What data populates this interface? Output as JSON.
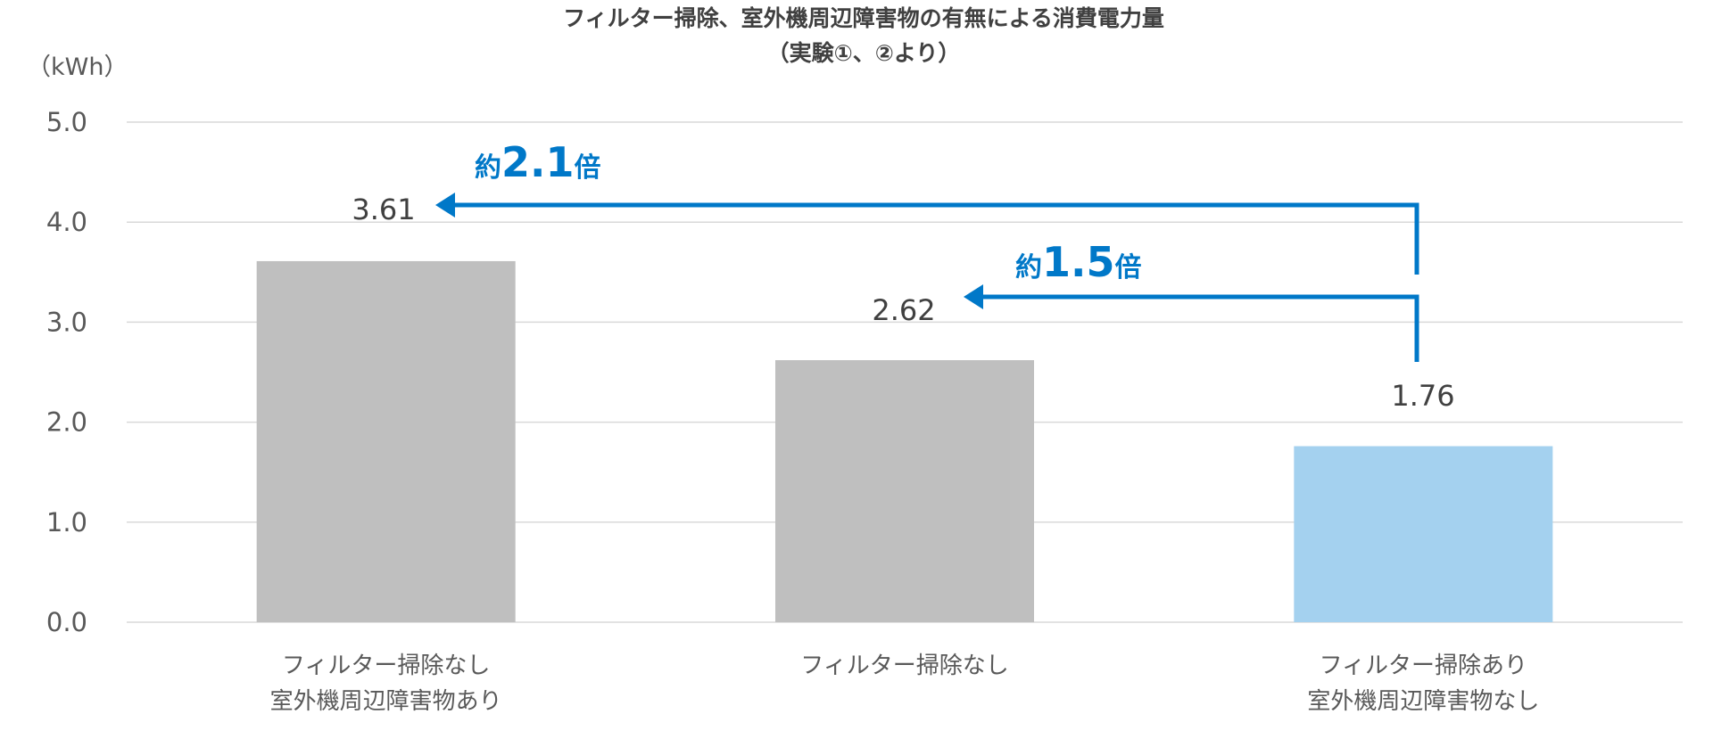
{
  "chart_data": {
    "type": "bar",
    "title": [
      "フィルター掃除、室外機周辺障害物の有無による消費電力量",
      "（実験①、②より）"
    ],
    "ylabel": "（kWh）",
    "ylim": [
      0,
      5
    ],
    "yticks": [
      "0.0",
      "1.0",
      "2.0",
      "3.0",
      "4.0",
      "5.0"
    ],
    "grid": true,
    "categories": [
      [
        "フィルター掃除なし",
        "室外機周辺障害物あり"
      ],
      [
        "フィルター掃除なし"
      ],
      [
        "フィルター掃除あり",
        "室外機周辺障害物なし"
      ]
    ],
    "values": [
      3.61,
      2.62,
      1.76
    ],
    "value_labels": [
      "3.61",
      "2.62",
      "1.76"
    ],
    "bar_colors": [
      "#BFBFBF",
      "#BFBFBF",
      "#A4D1EF"
    ],
    "annotations": [
      {
        "prefix": "約",
        "number": "2.1",
        "suffix": "倍",
        "from": 1.76,
        "to": 3.61
      },
      {
        "prefix": "約",
        "number": "1.5",
        "suffix": "倍",
        "from": 1.76,
        "to": 2.62
      }
    ],
    "annotation_color": "#0078C8",
    "grid_color": "#D9D9D9"
  }
}
